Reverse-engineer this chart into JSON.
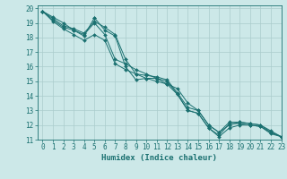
{
  "title": "",
  "xlabel": "Humidex (Indice chaleur)",
  "ylabel": "",
  "background_color": "#cce8e8",
  "grid_color": "#aacccc",
  "line_color": "#1a7070",
  "xlim": [
    -0.5,
    23
  ],
  "ylim": [
    11,
    20.2
  ],
  "xticks": [
    0,
    1,
    2,
    3,
    4,
    5,
    6,
    7,
    8,
    9,
    10,
    11,
    12,
    13,
    14,
    15,
    16,
    17,
    18,
    19,
    20,
    21,
    22,
    23
  ],
  "yticks": [
    11,
    12,
    13,
    14,
    15,
    16,
    17,
    18,
    19,
    20
  ],
  "series": [
    {
      "x": [
        0,
        1,
        2,
        3,
        4,
        5,
        5,
        6,
        7,
        8,
        9,
        10,
        11,
        12,
        13,
        14,
        15,
        16,
        17,
        18,
        19,
        20,
        21,
        22,
        23
      ],
      "y": [
        19.8,
        19.4,
        19.0,
        18.5,
        18.1,
        19.35,
        19.35,
        18.5,
        18.1,
        16.0,
        15.1,
        15.2,
        15.2,
        15.0,
        14.1,
        13.0,
        12.8,
        11.8,
        11.3,
        12.1,
        12.1,
        12.0,
        11.9,
        11.5,
        11.2
      ]
    },
    {
      "x": [
        0,
        1,
        2,
        3,
        4,
        5,
        6,
        7,
        8,
        9,
        10,
        11,
        12,
        13,
        14,
        15,
        16,
        17,
        18,
        19,
        20,
        21,
        22,
        23
      ],
      "y": [
        19.8,
        19.2,
        18.7,
        18.5,
        18.2,
        19.0,
        18.2,
        16.5,
        16.2,
        15.8,
        15.5,
        15.2,
        14.8,
        14.5,
        13.5,
        13.0,
        12.0,
        11.5,
        12.0,
        12.2,
        12.1,
        12.0,
        11.6,
        11.2
      ]
    },
    {
      "x": [
        0,
        1,
        2,
        3,
        4,
        5,
        6,
        7,
        8,
        9,
        10,
        11,
        12,
        13,
        14,
        15,
        16,
        17,
        18,
        19,
        20,
        21,
        22,
        23
      ],
      "y": [
        19.8,
        19.3,
        18.8,
        18.6,
        18.3,
        19.1,
        18.7,
        18.2,
        16.5,
        15.5,
        15.4,
        15.3,
        15.1,
        14.2,
        13.2,
        13.0,
        12.0,
        11.5,
        12.2,
        12.2,
        12.1,
        12.0,
        11.5,
        11.2
      ]
    },
    {
      "x": [
        0,
        1,
        2,
        3,
        4,
        5,
        6,
        7,
        8,
        9,
        10,
        11,
        12,
        13,
        14,
        15,
        16,
        17,
        18,
        19,
        20,
        21,
        22,
        23
      ],
      "y": [
        19.8,
        19.1,
        18.6,
        18.2,
        17.8,
        18.2,
        17.8,
        16.2,
        15.8,
        15.5,
        15.2,
        15.0,
        14.8,
        14.1,
        13.0,
        12.8,
        11.8,
        11.2,
        11.8,
        12.0,
        12.0,
        11.9,
        11.4,
        11.2
      ]
    }
  ]
}
